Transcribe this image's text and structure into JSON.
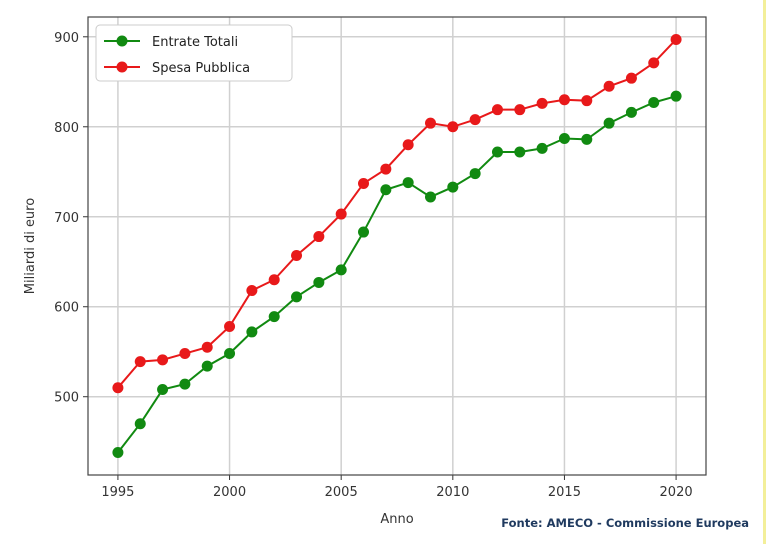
{
  "chart_data": {
    "type": "line",
    "title": "",
    "xlabel": "Anno",
    "ylabel": "Miliardi di euro",
    "xlim": [
      1993.66,
      2021.34
    ],
    "ylim": [
      413,
      922
    ],
    "xticks": [
      1995,
      2000,
      2005,
      2010,
      2015,
      2020
    ],
    "yticks": [
      500,
      600,
      700,
      800,
      900
    ],
    "grid": true,
    "legend_position": "top-left",
    "x": [
      1995,
      1996,
      1997,
      1998,
      1999,
      2000,
      2001,
      2002,
      2003,
      2004,
      2005,
      2006,
      2007,
      2008,
      2009,
      2010,
      2011,
      2012,
      2013,
      2014,
      2015,
      2016,
      2017,
      2018,
      2019,
      2020
    ],
    "series": [
      {
        "name": "Entrate Totali",
        "color": "#118a11",
        "values": [
          438,
          470,
          508,
          514,
          534,
          548,
          572,
          589,
          611,
          627,
          641,
          683,
          730,
          738,
          722,
          733,
          748,
          772,
          772,
          776,
          787,
          786,
          804,
          816,
          827,
          834
        ]
      },
      {
        "name": "Spesa Pubblica",
        "color": "#e8191a",
        "values": [
          510,
          539,
          541,
          548,
          555,
          578,
          618,
          630,
          657,
          678,
          703,
          737,
          753,
          780,
          804,
          800,
          808,
          819,
          819,
          826,
          830,
          829,
          845,
          854,
          871,
          897
        ]
      }
    ]
  },
  "source": "Fonte: AMECO - Commissione Europea"
}
